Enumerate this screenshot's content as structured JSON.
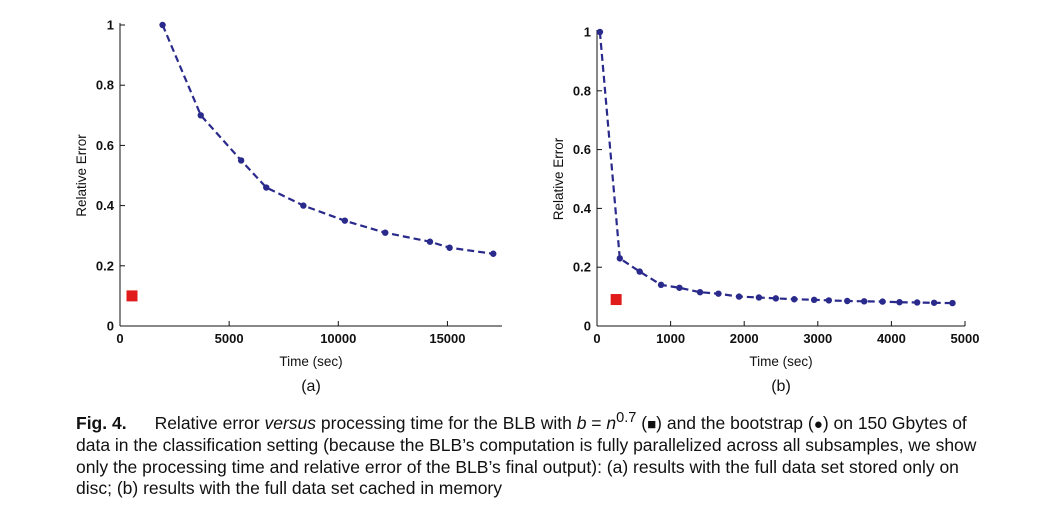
{
  "chart_data": [
    {
      "type": "scatter",
      "panel_label": "(a)",
      "xlabel": "Time (sec)",
      "ylabel": "Relative Error",
      "xlim": [
        0,
        17500
      ],
      "ylim": [
        0,
        1
      ],
      "xticks": [
        "0",
        "5000",
        "10000",
        "15000"
      ],
      "yticks": [
        "0",
        "0.2",
        "0.4",
        "0.6",
        "0.8",
        "1"
      ],
      "grid": false,
      "series": [
        {
          "marker": "circle",
          "line": "dashed",
          "color": "#2a2a8c",
          "x": [
            1950,
            3700,
            5550,
            6700,
            8400,
            10300,
            12150,
            14200,
            15100,
            17100
          ],
          "y": [
            1.0,
            0.7,
            0.55,
            0.46,
            0.4,
            0.35,
            0.31,
            0.28,
            0.26,
            0.24
          ]
        },
        {
          "marker": "square",
          "color": "#e01b1b",
          "x": [
            550
          ],
          "y": [
            0.1
          ]
        }
      ]
    },
    {
      "type": "scatter",
      "panel_label": "(b)",
      "xlabel": "Time (sec)",
      "ylabel": "Relative Error",
      "xlim": [
        0,
        5000
      ],
      "ylim": [
        0,
        1
      ],
      "xticks": [
        "0",
        "1000",
        "2000",
        "3000",
        "4000",
        "5000"
      ],
      "yticks": [
        "0",
        "0.2",
        "0.4",
        "0.6",
        "0.8",
        "1"
      ],
      "grid": false,
      "series": [
        {
          "marker": "circle",
          "line": "dashed",
          "color": "#2a2a8c",
          "x": [
            40,
            310,
            580,
            870,
            1120,
            1400,
            1650,
            1930,
            2200,
            2430,
            2680,
            2950,
            3150,
            3400,
            3630,
            3880,
            4110,
            4350,
            4580,
            4830
          ],
          "y": [
            1.0,
            0.23,
            0.185,
            0.14,
            0.13,
            0.115,
            0.11,
            0.1,
            0.097,
            0.094,
            0.091,
            0.089,
            0.087,
            0.085,
            0.084,
            0.083,
            0.081,
            0.08,
            0.079,
            0.078
          ]
        },
        {
          "marker": "square",
          "color": "#e01b1b",
          "x": [
            260
          ],
          "y": [
            0.09
          ]
        }
      ]
    }
  ],
  "caption": {
    "fig_label": "Fig. 4.",
    "t1": "Relative error ",
    "t2": "versus",
    "t3": " processing time for the BLB with ",
    "b": "b",
    "eq": " = ",
    "n": "n",
    "exp": "0.7",
    "t4": " (",
    "square_symbol": "■",
    "t5": ") and the bootstrap (",
    "circle_symbol": "●",
    "t6": ") on 150 Gbytes of data in the classification setting (because the BLB’s computation is fully parallelized across all subsamples, we show only the processing time and relative error of the BLB’s final output): (a) results with the full data set stored only on disc; (b) results with the full data set cached in memory"
  }
}
